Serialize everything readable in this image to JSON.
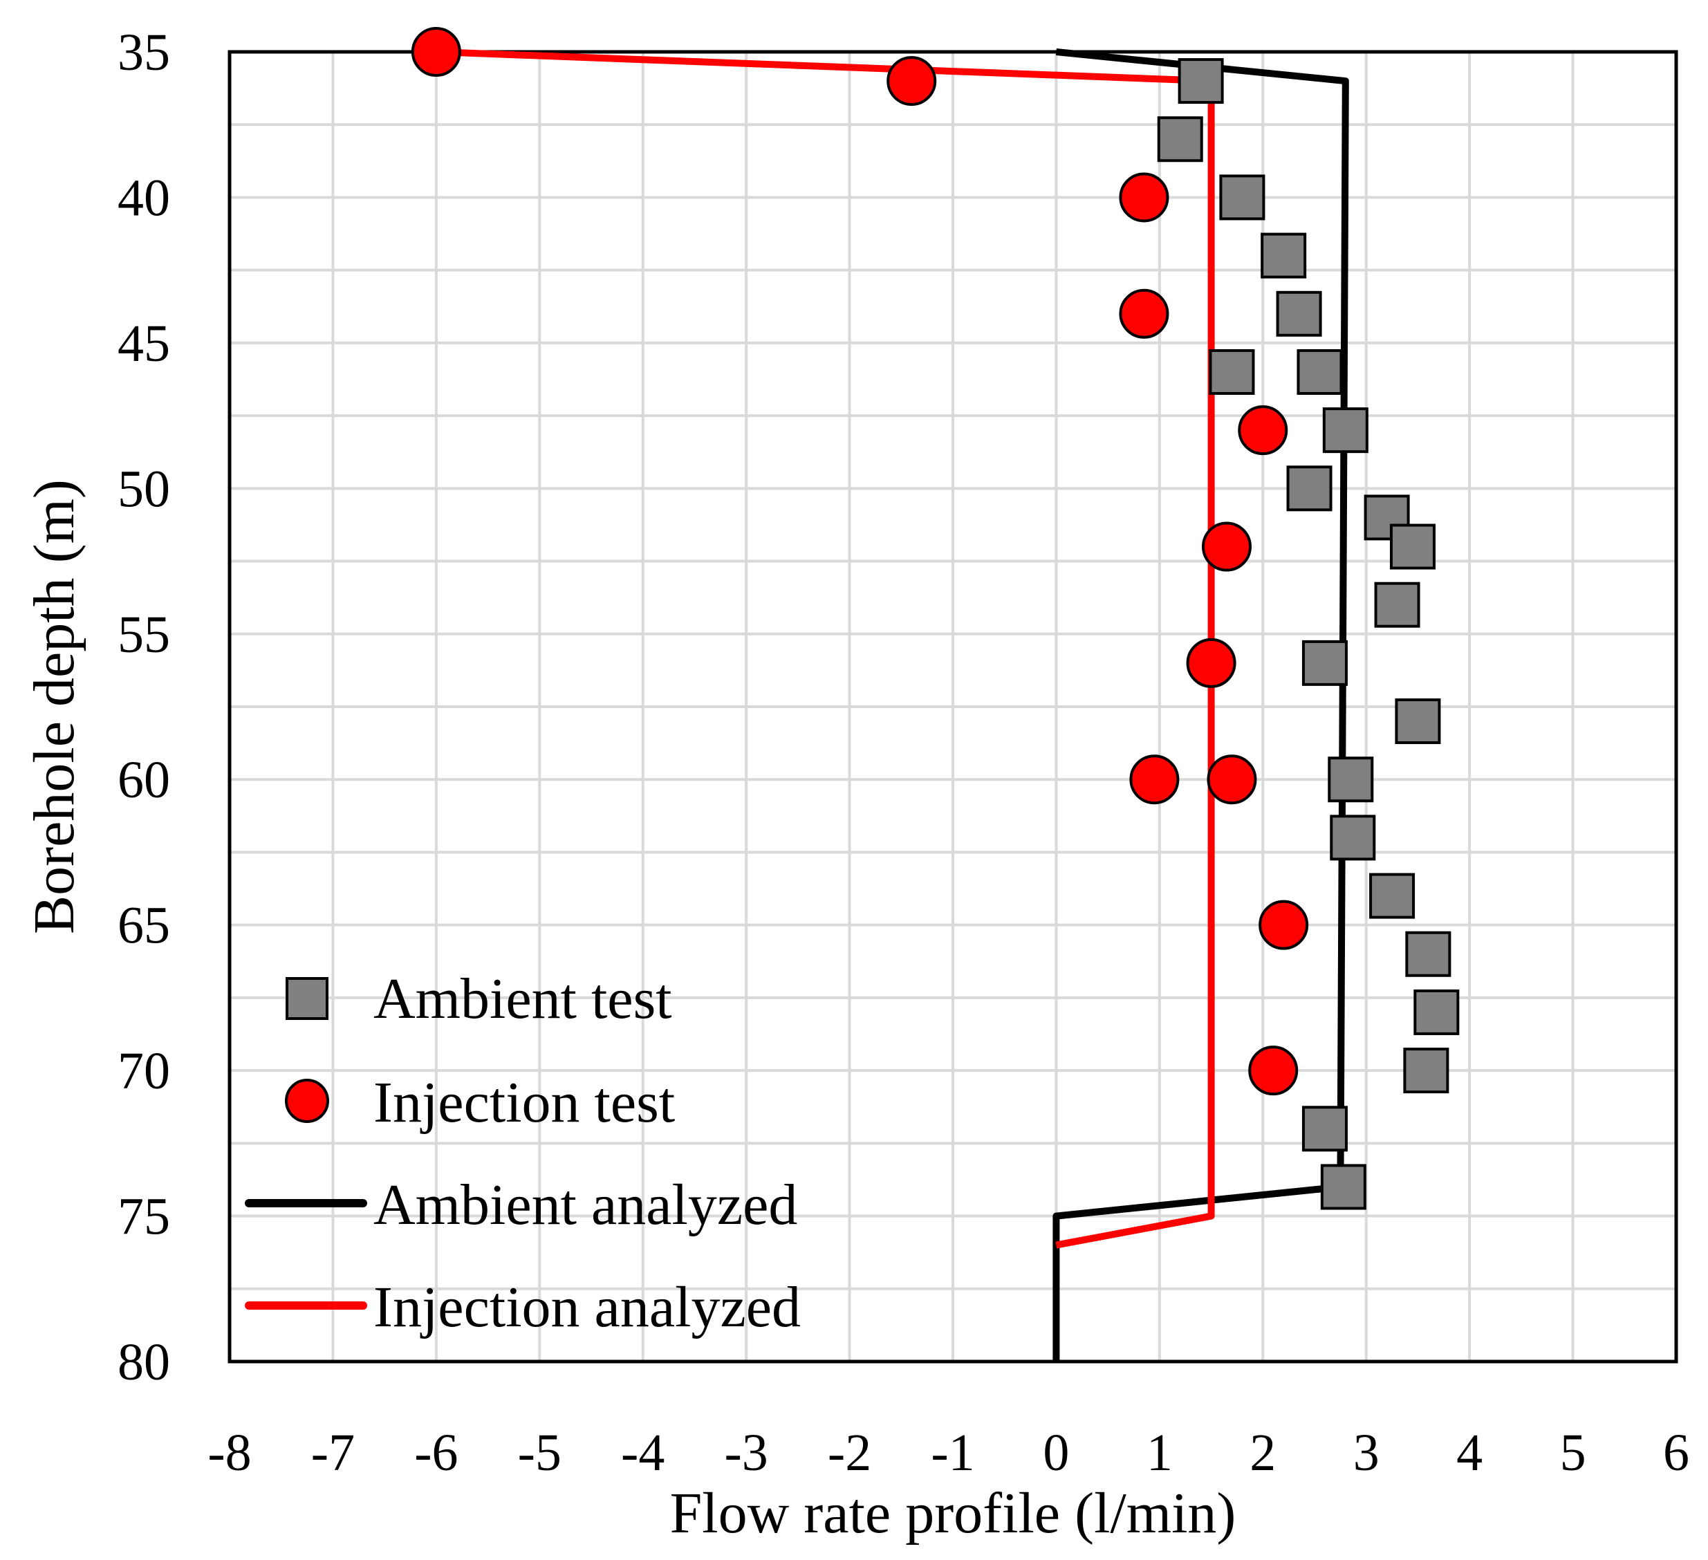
{
  "chart_data": {
    "type": "scatter",
    "title": "",
    "xlabel": "Flow rate profile (l/min)",
    "ylabel": "Borehole depth (m)",
    "xlim": [
      -8,
      6
    ],
    "ylim": [
      35,
      80
    ],
    "y_inverted": true,
    "grid": true,
    "legend_position": "bottom-left",
    "x_ticks": [
      -8,
      -7,
      -6,
      -5,
      -4,
      -3,
      -2,
      -1,
      0,
      1,
      2,
      3,
      4,
      5,
      6
    ],
    "x_tick_labels": [
      "-8",
      "-7",
      "-6",
      "-5",
      "-4",
      "-3",
      "-2",
      "-1",
      "0",
      "1",
      "2",
      "3",
      "4",
      "5",
      "6"
    ],
    "y_ticks": [
      35,
      40,
      45,
      50,
      55,
      60,
      65,
      70,
      75,
      80
    ],
    "y_tick_labels": [
      "35",
      "40",
      "45",
      "50",
      "55",
      "60",
      "65",
      "70",
      "75",
      "80"
    ],
    "series": [
      {
        "name": "Ambient test",
        "kind": "markers",
        "marker": "square",
        "color": "#808080",
        "edge_color": "#000000",
        "points": [
          {
            "x": 1.4,
            "y": 36
          },
          {
            "x": 1.2,
            "y": 38
          },
          {
            "x": 1.8,
            "y": 40
          },
          {
            "x": 2.2,
            "y": 42
          },
          {
            "x": 2.35,
            "y": 44
          },
          {
            "x": 1.7,
            "y": 46
          },
          {
            "x": 2.55,
            "y": 46
          },
          {
            "x": 2.8,
            "y": 48
          },
          {
            "x": 2.45,
            "y": 50
          },
          {
            "x": 3.2,
            "y": 51
          },
          {
            "x": 3.45,
            "y": 52
          },
          {
            "x": 3.3,
            "y": 54
          },
          {
            "x": 2.6,
            "y": 56
          },
          {
            "x": 3.5,
            "y": 58
          },
          {
            "x": 2.85,
            "y": 60
          },
          {
            "x": 2.87,
            "y": 62
          },
          {
            "x": 3.25,
            "y": 64
          },
          {
            "x": 3.6,
            "y": 66
          },
          {
            "x": 3.68,
            "y": 68
          },
          {
            "x": 3.58,
            "y": 70
          },
          {
            "x": 2.6,
            "y": 72
          },
          {
            "x": 2.78,
            "y": 74
          }
        ]
      },
      {
        "name": "Injection test",
        "kind": "markers",
        "marker": "circle",
        "color": "#ff0000",
        "edge_color": "#000000",
        "points": [
          {
            "x": -6.0,
            "y": 35
          },
          {
            "x": -1.4,
            "y": 36
          },
          {
            "x": 0.85,
            "y": 40
          },
          {
            "x": 0.85,
            "y": 44
          },
          {
            "x": 2.0,
            "y": 48
          },
          {
            "x": 1.65,
            "y": 52
          },
          {
            "x": 1.5,
            "y": 56
          },
          {
            "x": 0.95,
            "y": 60
          },
          {
            "x": 1.7,
            "y": 60
          },
          {
            "x": 2.2,
            "y": 65
          },
          {
            "x": 2.1,
            "y": 70
          }
        ]
      },
      {
        "name": "Ambient analyzed",
        "kind": "line",
        "color": "#000000",
        "points": [
          {
            "x": 0.0,
            "y": 35
          },
          {
            "x": 2.8,
            "y": 36
          },
          {
            "x": 2.75,
            "y": 74
          },
          {
            "x": 0.0,
            "y": 75
          },
          {
            "x": 0.0,
            "y": 80
          }
        ]
      },
      {
        "name": "Injection analyzed",
        "kind": "line",
        "color": "#ff0000",
        "points": [
          {
            "x": -6.0,
            "y": 35
          },
          {
            "x": 1.5,
            "y": 36
          },
          {
            "x": 1.5,
            "y": 75
          },
          {
            "x": 0.0,
            "y": 76
          }
        ]
      }
    ]
  }
}
